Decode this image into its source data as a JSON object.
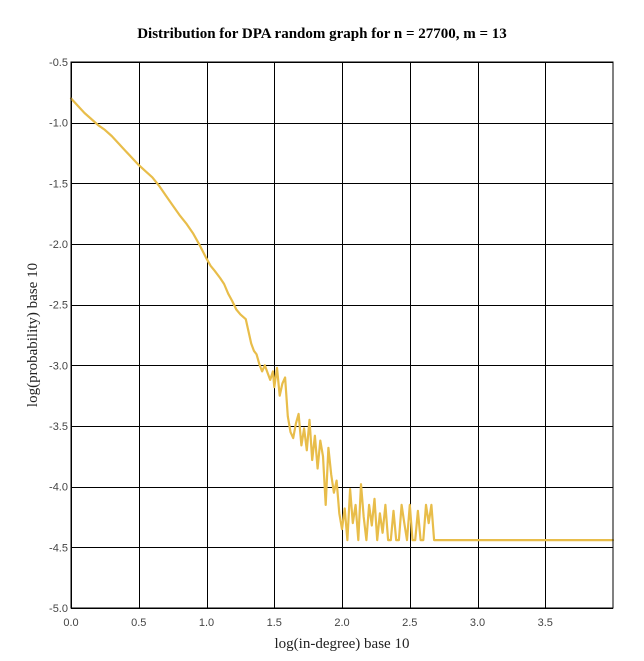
{
  "chart_data": {
    "type": "line",
    "title": "Distribution for DPA random graph for n = 27700, m = 13",
    "xlabel": "log(in-degree) base 10",
    "ylabel": "log(probability) base 10",
    "xlim": [
      0.0,
      4.0
    ],
    "ylim": [
      -5.0,
      -0.5
    ],
    "xticks": [
      "0.0",
      "0.5",
      "1.0",
      "1.5",
      "2.0",
      "2.5",
      "3.0",
      "3.5"
    ],
    "xtick_values": [
      0.0,
      0.5,
      1.0,
      1.5,
      2.0,
      2.5,
      3.0,
      3.5
    ],
    "yticks": [
      "-0.5",
      "-1.0",
      "-1.5",
      "-2.0",
      "-2.5",
      "-3.0",
      "-3.5",
      "-4.0",
      "-4.5",
      "-5.0"
    ],
    "ytick_values": [
      -0.5,
      -1.0,
      -1.5,
      -2.0,
      -2.5,
      -3.0,
      -3.5,
      -4.0,
      -4.5,
      -5.0
    ],
    "grid": true,
    "legend": "none",
    "series": [
      {
        "color": "#e8bd4a",
        "x": [
          0.0,
          0.05,
          0.1,
          0.15,
          0.2,
          0.25,
          0.3,
          0.35,
          0.4,
          0.45,
          0.5,
          0.55,
          0.6,
          0.65,
          0.7,
          0.75,
          0.8,
          0.85,
          0.9,
          0.95,
          1.0,
          1.03,
          1.06,
          1.1,
          1.13,
          1.16,
          1.19,
          1.22,
          1.25,
          1.27,
          1.29,
          1.31,
          1.33,
          1.35,
          1.37,
          1.39,
          1.41,
          1.43,
          1.45,
          1.47,
          1.49,
          1.5,
          1.52,
          1.54,
          1.56,
          1.58,
          1.6,
          1.62,
          1.64,
          1.66,
          1.68,
          1.7,
          1.72,
          1.74,
          1.76,
          1.78,
          1.8,
          1.82,
          1.84,
          1.86,
          1.88,
          1.9,
          1.92,
          1.94,
          1.96,
          1.98,
          2.0,
          2.02,
          2.04,
          2.06,
          2.08,
          2.1,
          2.12,
          2.14,
          2.16,
          2.18,
          2.2,
          2.22,
          2.24,
          2.26,
          2.28,
          2.3,
          2.32,
          2.34,
          2.36,
          2.38,
          2.4,
          2.42,
          2.44,
          2.46,
          2.48,
          2.5,
          2.52,
          2.54,
          2.56,
          2.58,
          2.6,
          2.62,
          2.64,
          2.66,
          2.68,
          2.7,
          3.0,
          3.5,
          4.0
        ],
        "y": [
          -0.8,
          -0.86,
          -0.92,
          -0.97,
          -1.02,
          -1.06,
          -1.11,
          -1.17,
          -1.23,
          -1.29,
          -1.35,
          -1.4,
          -1.45,
          -1.52,
          -1.6,
          -1.68,
          -1.76,
          -1.83,
          -1.91,
          -2.01,
          -2.12,
          -2.18,
          -2.22,
          -2.28,
          -2.33,
          -2.41,
          -2.47,
          -2.54,
          -2.58,
          -2.6,
          -2.62,
          -2.72,
          -2.82,
          -2.88,
          -2.91,
          -2.99,
          -3.05,
          -3.0,
          -3.06,
          -3.12,
          -3.05,
          -3.18,
          -3.02,
          -3.25,
          -3.15,
          -3.1,
          -3.42,
          -3.55,
          -3.6,
          -3.48,
          -3.4,
          -3.66,
          -3.52,
          -3.7,
          -3.45,
          -3.78,
          -3.58,
          -3.85,
          -3.62,
          -3.75,
          -4.15,
          -3.68,
          -3.9,
          -4.05,
          -3.95,
          -4.22,
          -4.35,
          -4.18,
          -4.44,
          -4.02,
          -4.3,
          -4.15,
          -4.44,
          -3.98,
          -4.25,
          -4.44,
          -4.15,
          -4.32,
          -4.1,
          -4.44,
          -4.22,
          -4.38,
          -4.15,
          -4.44,
          -4.44,
          -4.2,
          -4.44,
          -4.44,
          -4.15,
          -4.3,
          -4.44,
          -4.15,
          -4.44,
          -4.44,
          -4.2,
          -4.44,
          -4.44,
          -4.15,
          -4.3,
          -4.15,
          -4.44,
          -4.44,
          -4.44,
          -4.44,
          -4.44
        ]
      }
    ]
  }
}
